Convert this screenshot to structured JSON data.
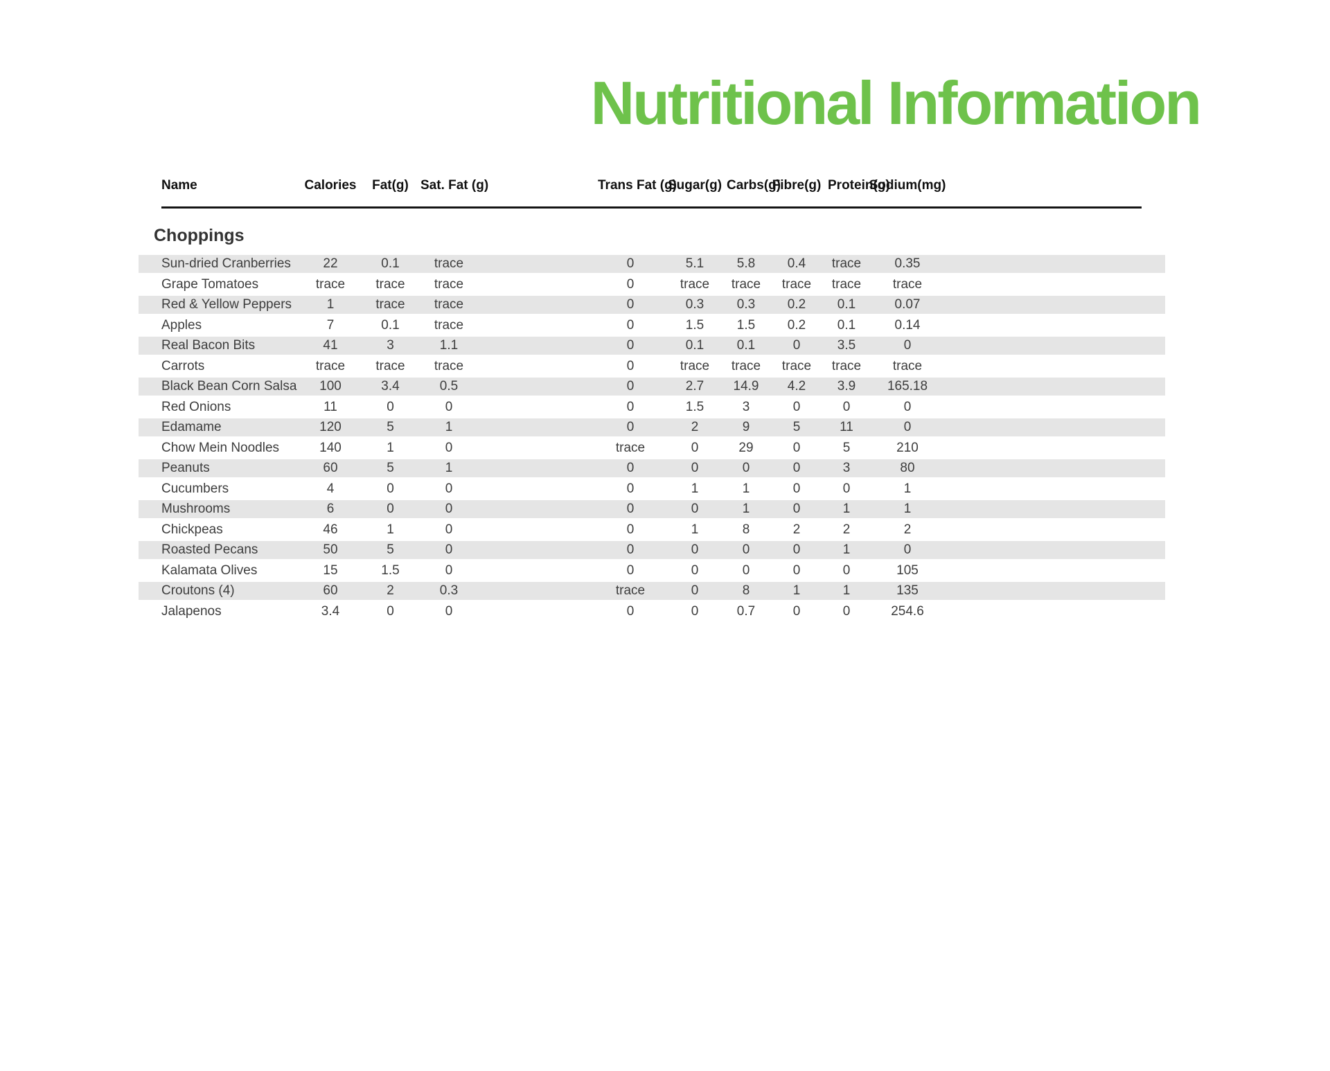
{
  "page": {
    "title": "Nutritional Information",
    "accent_color": "#6ec24b",
    "stripe_color": "#e5e5e5"
  },
  "table": {
    "section": "Choppings",
    "columns": [
      "Name",
      "Calories",
      "Fat(g)",
      "Sat. Fat (g)",
      "Trans Fat (g)",
      "Sugar(g)",
      "Carbs(g)",
      "Fibre(g)",
      "Protein(g)",
      "Sodium(mg)"
    ],
    "column_keys": [
      "name",
      "calories",
      "fat",
      "sat-fat",
      "trans-fat",
      "sugar",
      "carbs",
      "fibre",
      "protein",
      "sodium"
    ],
    "rows": [
      {
        "name": "Sun-dried Cranberries",
        "values": [
          "22",
          "0.1",
          "trace",
          "0",
          "5.1",
          "5.8",
          "0.4",
          "trace",
          "0.35"
        ]
      },
      {
        "name": "Grape Tomatoes",
        "values": [
          "trace",
          "trace",
          "trace",
          "0",
          "trace",
          "trace",
          "trace",
          "trace",
          "trace"
        ]
      },
      {
        "name": "Red & Yellow Peppers",
        "values": [
          "1",
          "trace",
          "trace",
          "0",
          "0.3",
          "0.3",
          "0.2",
          "0.1",
          "0.07"
        ]
      },
      {
        "name": "Apples",
        "values": [
          "7",
          "0.1",
          "trace",
          "0",
          "1.5",
          "1.5",
          "0.2",
          "0.1",
          "0.14"
        ]
      },
      {
        "name": "Real Bacon Bits",
        "values": [
          "41",
          "3",
          "1.1",
          "0",
          "0.1",
          "0.1",
          "0",
          "3.5",
          "0"
        ]
      },
      {
        "name": "Carrots",
        "values": [
          "trace",
          "trace",
          "trace",
          "0",
          "trace",
          "trace",
          "trace",
          "trace",
          "trace"
        ]
      },
      {
        "name": "Black Bean Corn Salsa",
        "values": [
          "100",
          "3.4",
          "0.5",
          "0",
          "2.7",
          "14.9",
          "4.2",
          "3.9",
          "165.18"
        ]
      },
      {
        "name": "Red Onions",
        "values": [
          "11",
          "0",
          "0",
          "0",
          "1.5",
          "3",
          "0",
          "0",
          "0"
        ]
      },
      {
        "name": "Edamame",
        "values": [
          "120",
          "5",
          "1",
          "0",
          "2",
          "9",
          "5",
          "11",
          "0"
        ]
      },
      {
        "name": "Chow Mein Noodles",
        "values": [
          "140",
          "1",
          "0",
          "trace",
          "0",
          "29",
          "0",
          "5",
          "210"
        ]
      },
      {
        "name": "Peanuts",
        "values": [
          "60",
          "5",
          "1",
          "0",
          "0",
          "0",
          "0",
          "3",
          "80"
        ]
      },
      {
        "name": "Cucumbers",
        "values": [
          "4",
          "0",
          "0",
          "0",
          "1",
          "1",
          "0",
          "0",
          "1"
        ]
      },
      {
        "name": "Mushrooms",
        "values": [
          "6",
          "0",
          "0",
          "0",
          "0",
          "1",
          "0",
          "1",
          "1"
        ]
      },
      {
        "name": "Chickpeas",
        "values": [
          "46",
          "1",
          "0",
          "0",
          "1",
          "8",
          "2",
          "2",
          "2"
        ]
      },
      {
        "name": "Roasted Pecans",
        "values": [
          "50",
          "5",
          "0",
          "0",
          "0",
          "0",
          "0",
          "1",
          "0"
        ]
      },
      {
        "name": "Kalamata Olives",
        "values": [
          "15",
          "1.5",
          "0",
          "0",
          "0",
          "0",
          "0",
          "0",
          "105"
        ]
      },
      {
        "name": "Croutons (4)",
        "values": [
          "60",
          "2",
          "0.3",
          "trace",
          "0",
          "8",
          "1",
          "1",
          "135"
        ]
      },
      {
        "name": "Jalapenos",
        "values": [
          "3.4",
          "0",
          "0",
          "0",
          "0",
          "0.7",
          "0",
          "0",
          "254.6"
        ]
      }
    ]
  }
}
